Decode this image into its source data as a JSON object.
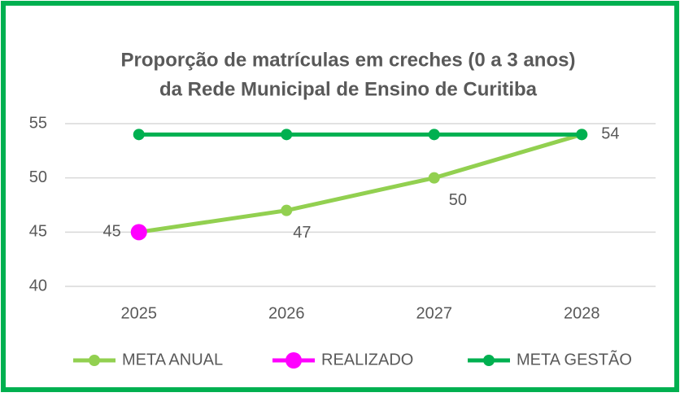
{
  "chart_data": {
    "type": "line",
    "title": [
      "Proporção de matrículas em creches (0 a 3 anos)",
      "da Rede Municipal de Ensino de Curitiba"
    ],
    "categories": [
      "2025",
      "2026",
      "2027",
      "2028"
    ],
    "series": [
      {
        "name": "META ANUAL",
        "color": "#92d050",
        "values": [
          45,
          47,
          50,
          54
        ],
        "data_labels": true
      },
      {
        "name": "REALIZADO",
        "color": "#ff00ff",
        "values": [
          45,
          null,
          null,
          null
        ]
      },
      {
        "name": "META GESTÃO",
        "color": "#00b050",
        "values": [
          54,
          54,
          54,
          54
        ]
      }
    ],
    "ylim": [
      40,
      55
    ],
    "yticks": [
      40,
      45,
      50,
      55
    ],
    "grid": true,
    "legend": "bottom"
  }
}
